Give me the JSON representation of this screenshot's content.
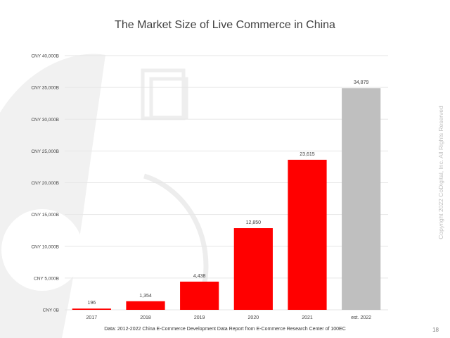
{
  "slide": {
    "title": "The Market Size of Live Commerce in China",
    "source": "Data: 2012-2022 China E-Commerce Development Data Report from E-Commerce Research Center of 100EC",
    "copyright": "Copyright 2022 CoDigital, Inc. All Rights Reserved",
    "page_number": "18"
  },
  "colors": {
    "actual_bar": "#ff0000",
    "estimate_bar": "#bfbfbf",
    "gridline": "#e6e6e6",
    "text": "#404040"
  },
  "chart_data": {
    "type": "bar",
    "title": "The Market Size of Live Commerce in China",
    "categories": [
      "2017",
      "2018",
      "2019",
      "2020",
      "2021",
      "est. 2022"
    ],
    "values": [
      196,
      1354,
      4438,
      12850,
      23615,
      34879
    ],
    "data_labels": [
      "196",
      "1,354",
      "4,438",
      "12,850",
      "23,615",
      "34,879"
    ],
    "bar_colors": [
      "#ff0000",
      "#ff0000",
      "#ff0000",
      "#ff0000",
      "#ff0000",
      "#bfbfbf"
    ],
    "y_ticks": [
      0,
      5000,
      10000,
      15000,
      20000,
      25000,
      30000,
      35000,
      40000
    ],
    "y_tick_labels": [
      "CNY 0B",
      "CNY 5,000B",
      "CNY 10,000B",
      "CNY 15,000B",
      "CNY 20,000B",
      "CNY 25,000B",
      "CNY 30,000B",
      "CNY 35,000B",
      "CNY 40,000B"
    ],
    "ylim": [
      0,
      40000
    ],
    "xlabel": "",
    "ylabel": "",
    "grid": true,
    "legend": "none"
  }
}
